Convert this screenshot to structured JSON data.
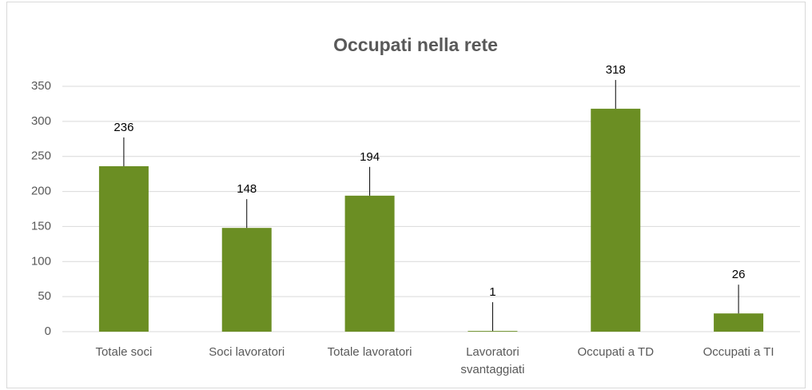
{
  "chart_data": {
    "type": "bar",
    "title": "Occupati nella rete",
    "categories": [
      "Totale soci",
      "Soci lavoratori",
      "Totale lavoratori",
      "Lavoratori svantaggiati",
      "Occupati a TD",
      "Occupati a TI"
    ],
    "values": [
      236,
      148,
      194,
      1,
      318,
      26
    ],
    "color": "#6b8e23",
    "ylim": [
      0,
      350
    ],
    "yticks": [
      0,
      50,
      100,
      150,
      200,
      250,
      300,
      350
    ],
    "grid": true,
    "data_labels": true
  }
}
